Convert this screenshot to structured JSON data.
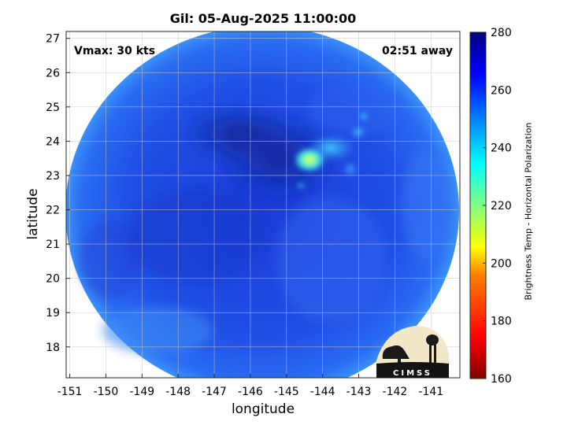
{
  "title": "Gil: 05-Aug-2025 11:00:00",
  "annotations": {
    "vmax": "Vmax: 30 kts",
    "time_away": "02:51 away"
  },
  "xlabel": "longitude",
  "ylabel": "latitude",
  "xticks": [
    "-151",
    "-150",
    "-149",
    "-148",
    "-147",
    "-146",
    "-145",
    "-144",
    "-143",
    "-142",
    "-141"
  ],
  "yticks": [
    "27",
    "26",
    "25",
    "24",
    "23",
    "22",
    "21",
    "20",
    "19",
    "18"
  ],
  "xlim": [
    -151.1,
    -140.2
  ],
  "ylim": [
    17.1,
    27.2
  ],
  "colorbar": {
    "label": "Brightness Temp - Horizontal Polarization",
    "ticks": [
      "280",
      "260",
      "240",
      "220",
      "200",
      "180",
      "160"
    ],
    "range": [
      160,
      280
    ],
    "colormap": [
      "#800000",
      "#ff0000",
      "#ff8000",
      "#ffff00",
      "#80ff80",
      "#00ffff",
      "#0080ff",
      "#0000ff",
      "#000080"
    ]
  },
  "logo": {
    "text": "CIMSS"
  },
  "chart_data": {
    "type": "heatmap",
    "field": "Brightness Temp - Horizontal Polarization",
    "storm_center": [
      -145.6,
      22.6
    ],
    "swath_center": [
      -146.0,
      22.0
    ],
    "swath_radius_deg": 5.6,
    "cold_core": {
      "lon": -144.6,
      "lat": 23.4,
      "value": 205
    },
    "background_value": 262
  }
}
